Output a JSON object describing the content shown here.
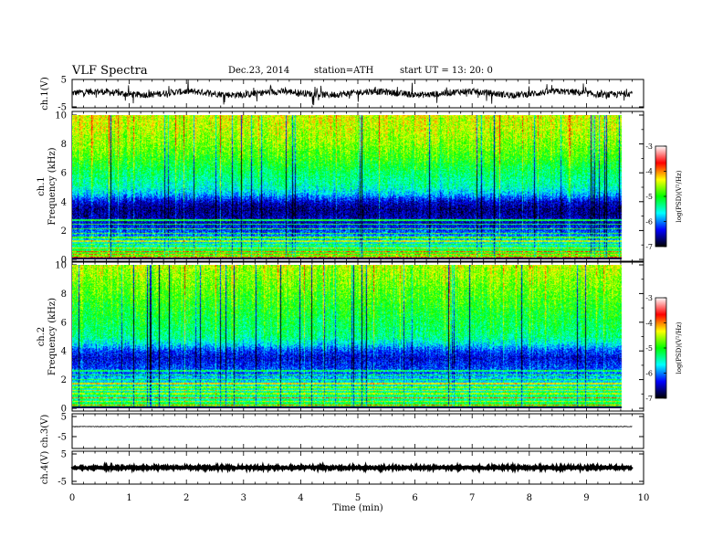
{
  "header": {
    "title": "VLF  Spectra",
    "date": "Dec.23, 2014",
    "station": "station=ATH",
    "start": "start  UT  =    13: 20: 0"
  },
  "chart_data": [
    {
      "type": "line",
      "panel": "ch1-waveform",
      "ylabel": "ch.1(V)",
      "ylim": [
        -5,
        5
      ],
      "yticks": [
        "5",
        "-5"
      ],
      "xlim": [
        0,
        10
      ],
      "level": 0,
      "noise_amplitude": 1.2,
      "spike_amplitude": 3.5,
      "data_end_min": 9.8
    },
    {
      "type": "heatmap",
      "panel": "ch1-spectrogram",
      "ylabel_line1": "ch.1",
      "ylabel_line2": "Frequency  (kHz)",
      "ylim": [
        0,
        10
      ],
      "yticks": [
        "0",
        "2",
        "4",
        "6",
        "8",
        "10"
      ],
      "xlim": [
        0,
        10
      ],
      "data_end_min": 9.8,
      "colorbar": {
        "label": "log(PSD)(V²/Hz)",
        "range": [
          -7,
          -3
        ],
        "ticks": [
          "-3",
          "-4",
          "-5",
          "-6",
          "-7"
        ]
      },
      "profile": [
        {
          "f": 0,
          "v": -4.2
        },
        {
          "f": 0.5,
          "v": -4.6
        },
        {
          "f": 1,
          "v": -5.3
        },
        {
          "f": 1.5,
          "v": -5.7
        },
        {
          "f": 2,
          "v": -6.0
        },
        {
          "f": 2.5,
          "v": -6.3
        },
        {
          "f": 3,
          "v": -6.5
        },
        {
          "f": 3.5,
          "v": -6.6
        },
        {
          "f": 4,
          "v": -6.3
        },
        {
          "f": 4.5,
          "v": -5.6
        },
        {
          "f": 5,
          "v": -5.2
        },
        {
          "f": 6,
          "v": -4.9
        },
        {
          "f": 7,
          "v": -4.5
        },
        {
          "f": 8,
          "v": -4.2
        },
        {
          "f": 9,
          "v": -4.0
        },
        {
          "f": 10,
          "v": -3.9
        }
      ],
      "lines_khz": [
        0.15,
        0.3,
        0.5,
        0.75,
        1.0,
        1.25,
        1.5,
        1.8,
        2.1,
        2.4,
        2.7
      ]
    },
    {
      "type": "heatmap",
      "panel": "ch2-spectrogram",
      "ylabel_line1": "ch.2",
      "ylabel_line2": "Frequency  (kHz)",
      "ylim": [
        0,
        10
      ],
      "yticks": [
        "0",
        "2",
        "4",
        "6",
        "8",
        "10"
      ],
      "xlim": [
        0,
        10
      ],
      "data_end_min": 9.8,
      "colorbar": {
        "label": "log(PSD)(V²/Hz)",
        "range": [
          -7,
          -3
        ],
        "ticks": [
          "-3",
          "-4",
          "-5",
          "-6",
          "-7"
        ]
      },
      "profile": [
        {
          "f": 0,
          "v": -4.5
        },
        {
          "f": 0.5,
          "v": -5.0
        },
        {
          "f": 1,
          "v": -5.0
        },
        {
          "f": 1.5,
          "v": -5.3
        },
        {
          "f": 2,
          "v": -5.5
        },
        {
          "f": 2.5,
          "v": -5.9
        },
        {
          "f": 3,
          "v": -6.1
        },
        {
          "f": 3.5,
          "v": -6.3
        },
        {
          "f": 4,
          "v": -6.0
        },
        {
          "f": 4.5,
          "v": -5.4
        },
        {
          "f": 5,
          "v": -5.0
        },
        {
          "f": 6,
          "v": -4.8
        },
        {
          "f": 7,
          "v": -4.6
        },
        {
          "f": 8,
          "v": -4.4
        },
        {
          "f": 9,
          "v": -4.2
        },
        {
          "f": 10,
          "v": -4.0
        }
      ],
      "lines_khz": [
        0.2,
        0.45,
        0.7,
        1.0,
        1.2,
        1.45,
        1.7,
        2.0,
        2.3,
        2.6
      ]
    },
    {
      "type": "line",
      "panel": "ch3-waveform",
      "ylabel": "ch.3(V)",
      "ylim": [
        -5,
        5
      ],
      "yticks": [
        "5",
        "-5"
      ],
      "xlim": [
        0,
        10
      ],
      "level": 0,
      "noise_amplitude": 0.15,
      "spike_amplitude": 0,
      "data_end_min": 9.8
    },
    {
      "type": "line",
      "panel": "ch4-waveform",
      "ylabel": "ch.4(V)",
      "ylim": [
        -5,
        5
      ],
      "yticks": [
        "5",
        "-5"
      ],
      "xlim": [
        0,
        10
      ],
      "level": 0,
      "noise_amplitude": 0.35,
      "spike_amplitude": 0,
      "data_end_min": 9.8
    }
  ],
  "xaxis": {
    "label": "Time  (min)",
    "ticks": [
      "0",
      "1",
      "2",
      "3",
      "4",
      "5",
      "6",
      "7",
      "8",
      "9",
      "10"
    ]
  },
  "colors": {
    "colormap": [
      "#000000",
      "#0000ff",
      "#00ffff",
      "#00ff00",
      "#ffff00",
      "#ff0000",
      "#ffffff"
    ]
  }
}
